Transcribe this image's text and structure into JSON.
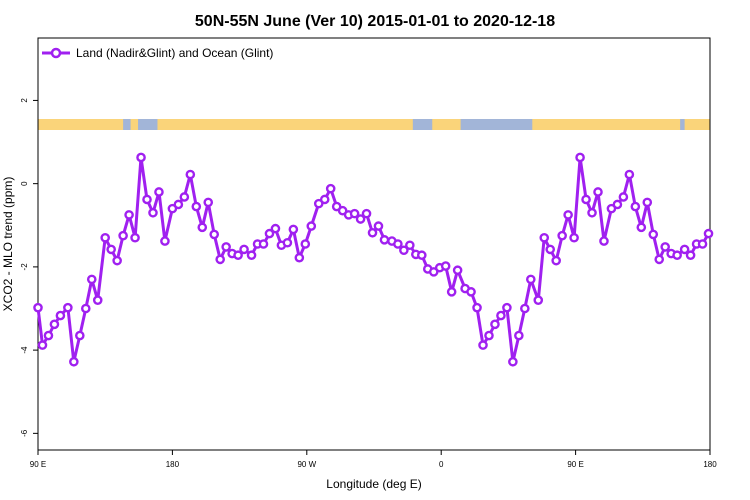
{
  "chart_data": {
    "type": "line",
    "title": "50N-55N June (Ver 10)   2015-01-01 to 2020-12-18",
    "xlabel": "Longitude (deg E)",
    "ylabel": "XCO2 - MLO trend (ppm)",
    "xlim": [
      90,
      540
    ],
    "ylim": [
      -6.4,
      3.5
    ],
    "x_ticks": [
      {
        "value": 90,
        "label": "90 E"
      },
      {
        "value": 180,
        "label": "180"
      },
      {
        "value": 270,
        "label": "90 W"
      },
      {
        "value": 360,
        "label": "0"
      },
      {
        "value": 450,
        "label": "90 E"
      },
      {
        "value": 540,
        "label": "180"
      }
    ],
    "y_ticks": [
      {
        "value": 2,
        "label": "2"
      },
      {
        "value": 0,
        "label": "0"
      },
      {
        "value": -2,
        "label": "-2"
      },
      {
        "value": -4,
        "label": "-4"
      },
      {
        "value": -6,
        "label": "-6"
      }
    ],
    "legend_position": "top-left",
    "grid": false,
    "colors": {
      "series": "#a020f0",
      "ocean_strip": "#a2b5d8",
      "land_strip": "#fad47a",
      "axis": "#000000"
    },
    "series": [
      {
        "name": "Land (Nadir&Glint) and Ocean (Glint)",
        "x": [
          90,
          93,
          97,
          101,
          105,
          110,
          114,
          118,
          122,
          126,
          130,
          135,
          139,
          143,
          147,
          151,
          155,
          159,
          163,
          167,
          171,
          175,
          180,
          184,
          188,
          192,
          196,
          200,
          204,
          208,
          212,
          216,
          220,
          224,
          228,
          233,
          237,
          241,
          245,
          249,
          253,
          257,
          261,
          265,
          269,
          273,
          278,
          282,
          286,
          290,
          294,
          298,
          302,
          306,
          310,
          314,
          318,
          322,
          327,
          331,
          335,
          339,
          343,
          347,
          351,
          355,
          359,
          363,
          367,
          371,
          376,
          380,
          384,
          388,
          392,
          396,
          400,
          404,
          408,
          412,
          416,
          420,
          425,
          429,
          433,
          437,
          441,
          445,
          449,
          453,
          457,
          461,
          465,
          469,
          474,
          478,
          482,
          486,
          490,
          494,
          498,
          502,
          506,
          510,
          514,
          518,
          523,
          527,
          531,
          535,
          539
        ],
        "y": [
          -2.98,
          -3.88,
          -3.65,
          -3.38,
          -3.17,
          -2.98,
          -4.28,
          -3.65,
          -3.0,
          -2.3,
          -2.8,
          -1.3,
          -1.58,
          -1.85,
          -1.25,
          -0.75,
          -1.3,
          0.63,
          -0.38,
          -0.7,
          -0.2,
          -1.38,
          -0.6,
          -0.5,
          -0.32,
          0.22,
          -0.55,
          -1.05,
          -0.45,
          -1.22,
          -1.82,
          -1.52,
          -1.68,
          -1.72,
          -1.58,
          -1.72,
          -1.45,
          -1.45,
          -1.2,
          -1.08,
          -1.48,
          -1.42,
          -1.1,
          -1.78,
          -1.45,
          -1.02,
          -0.48,
          -0.38,
          -0.12,
          -0.55,
          -0.65,
          -0.75,
          -0.72,
          -0.85,
          -0.72,
          -1.18,
          -1.02,
          -1.35,
          -1.38,
          -1.45,
          -1.6,
          -1.48,
          -1.7,
          -1.72,
          -2.05,
          -2.12,
          -2.02,
          -1.98,
          -2.6,
          -2.08,
          -2.52,
          -2.6,
          -2.98,
          -3.88,
          -3.65,
          -3.38,
          -3.17,
          -2.98,
          -4.28,
          -3.65,
          -3.0,
          -2.3,
          -2.8,
          -1.3,
          -1.58,
          -1.85,
          -1.25,
          -0.75,
          -1.3,
          0.63,
          -0.38,
          -0.7,
          -0.2,
          -1.38,
          -0.6,
          -0.5,
          -0.32,
          0.22,
          -0.55,
          -1.05,
          -0.45,
          -1.22,
          -1.82,
          -1.52,
          -1.68,
          -1.72,
          -1.58,
          -1.72,
          -1.45,
          -1.45,
          -1.2
        ]
      }
    ],
    "land_segments": [
      [
        90,
        147
      ],
      [
        152,
        157
      ],
      [
        170,
        341
      ],
      [
        354,
        373
      ],
      [
        421,
        520
      ],
      [
        523,
        540
      ]
    ]
  }
}
